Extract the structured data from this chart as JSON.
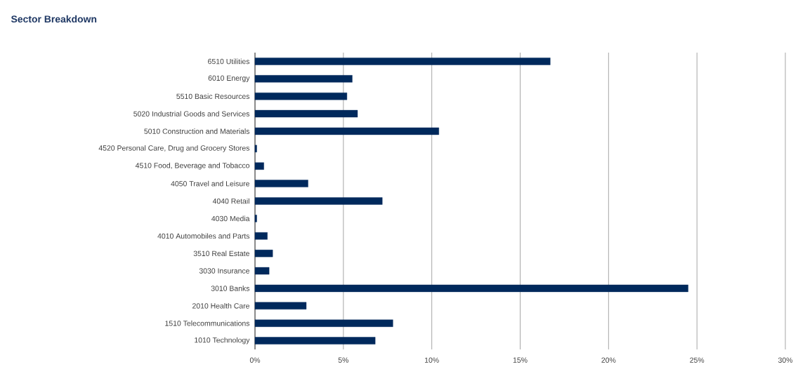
{
  "chart_data": {
    "type": "bar",
    "orientation": "horizontal",
    "title": "Sector Breakdown",
    "categories": [
      "6510 Utilities",
      "6010 Energy",
      "5510 Basic Resources",
      "5020 Industrial Goods and Services",
      "5010 Construction and Materials",
      "4520 Personal Care, Drug and Grocery Stores",
      "4510 Food, Beverage and Tobacco",
      "4050 Travel and Leisure",
      "4040 Retail",
      "4030 Media",
      "4010 Automobiles and Parts",
      "3510 Real Estate",
      "3030 Insurance",
      "3010 Banks",
      "2010 Health Care",
      "1510 Telecommunications",
      "1010 Technology"
    ],
    "values": [
      16.7,
      5.5,
      5.2,
      5.8,
      10.4,
      0.1,
      0.5,
      3.0,
      7.2,
      0.1,
      0.7,
      1.0,
      0.8,
      24.5,
      2.9,
      7.8,
      6.8
    ],
    "color": "#00295c",
    "xlim": [
      0,
      30
    ],
    "xticks": [
      {
        "value": 0,
        "label": "0%"
      },
      {
        "value": 5,
        "label": "5%"
      },
      {
        "value": 10,
        "label": "10%"
      },
      {
        "value": 15,
        "label": "15%"
      },
      {
        "value": 20,
        "label": "20%"
      },
      {
        "value": 25,
        "label": "25%"
      },
      {
        "value": 30,
        "label": "30%"
      }
    ],
    "grid": "x"
  }
}
